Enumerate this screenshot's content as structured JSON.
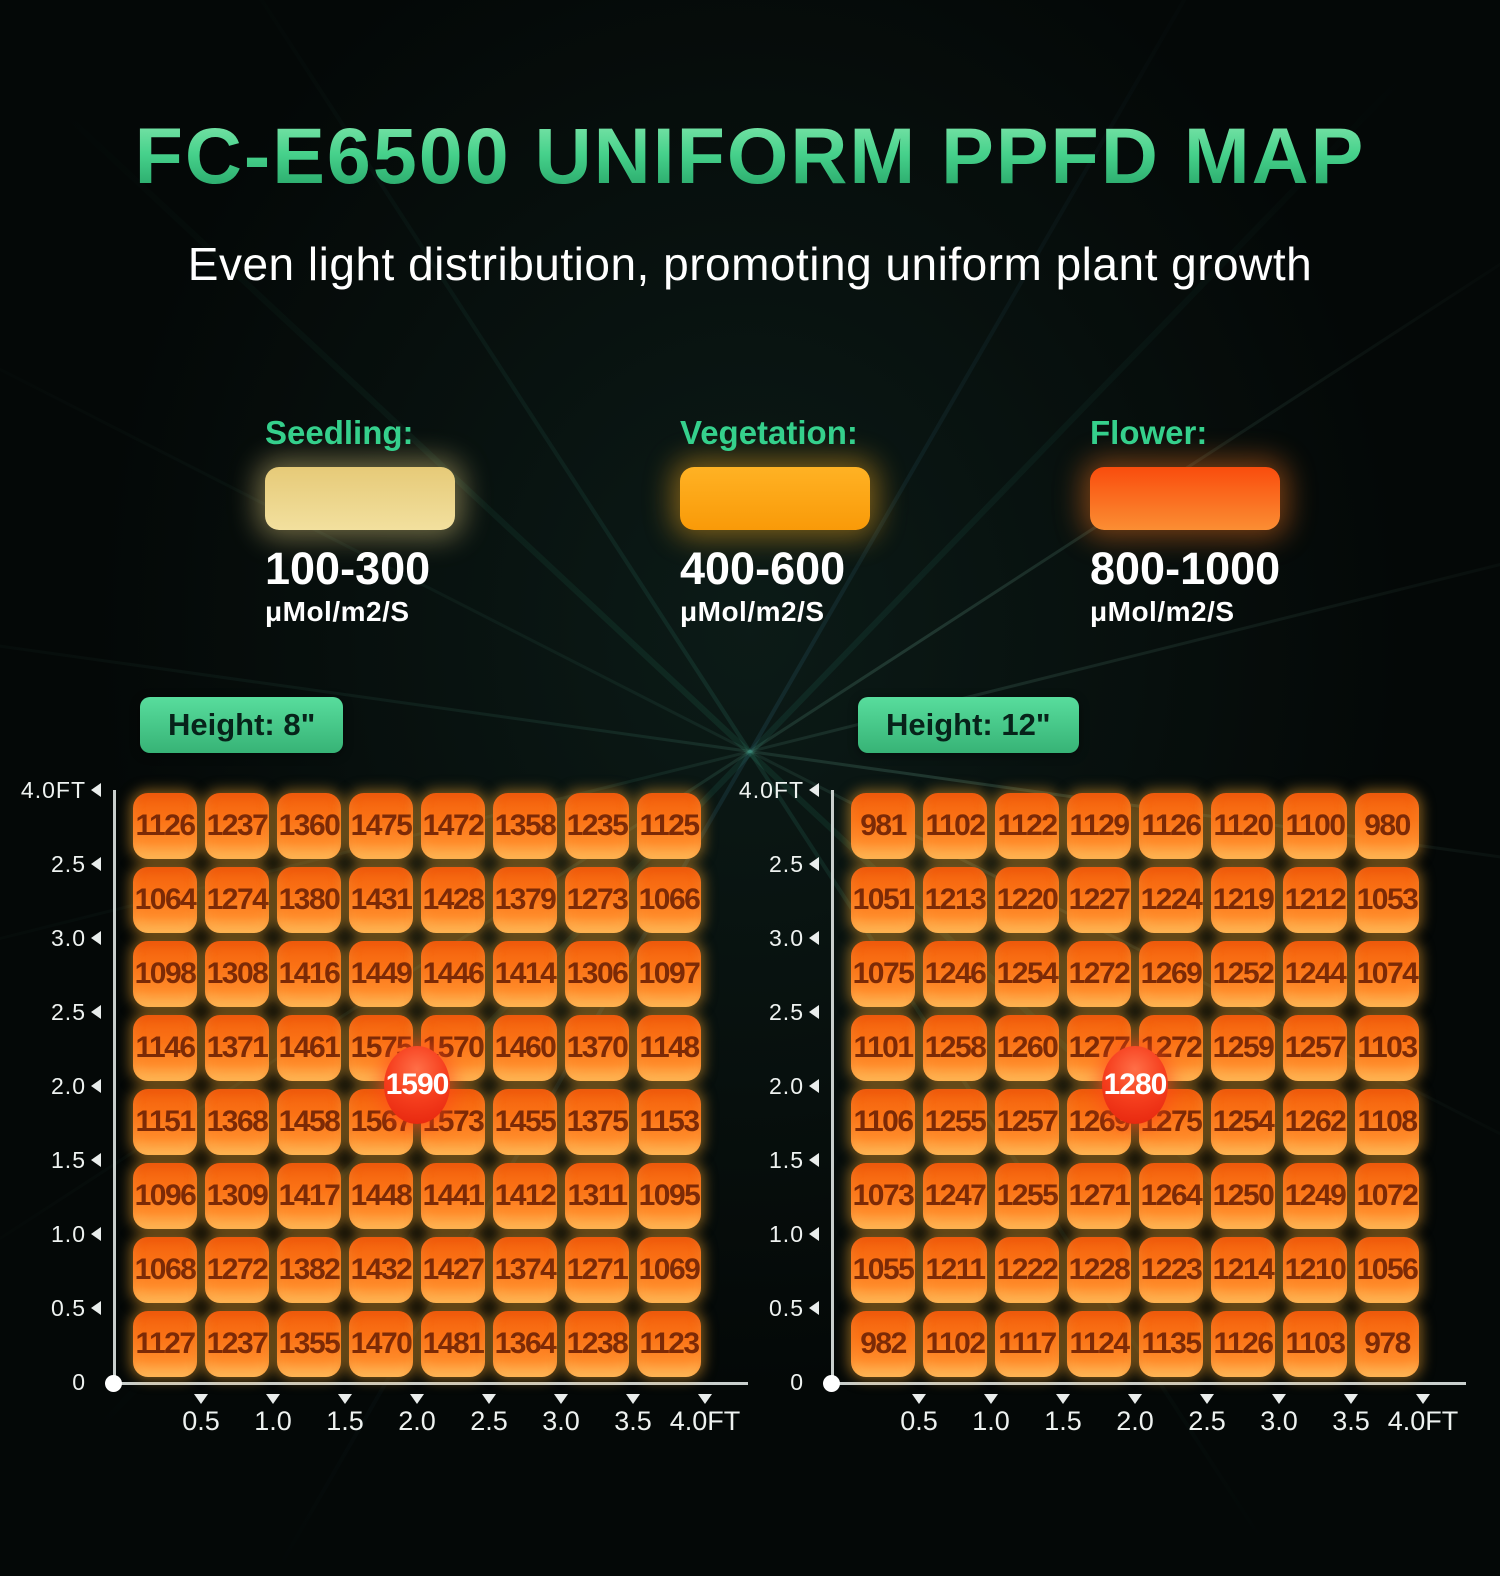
{
  "title": "FC-E6500 UNIFORM PPFD MAP",
  "subtitle": "Even light distribution, promoting uniform plant growth",
  "colors": {
    "accent_green": "#35d08c",
    "tile_orange": "#fb7215",
    "tile_text": "#7c2a06",
    "axis": "#c9cfcd",
    "badge_red": "#f63f1e"
  },
  "legend": [
    {
      "label": "Seedling:",
      "range": "100-300",
      "unit": "μMol/m2/S",
      "color_top": "#e6ca78",
      "color_bottom": "#f2e09e",
      "glow": "rgba(235,210,130,0.45)"
    },
    {
      "label": "Vegetation:",
      "range": "400-600",
      "unit": "μMol/m2/S",
      "color_top": "#ffb224",
      "color_bottom": "#f99a08",
      "glow": "rgba(255,175,30,0.45)"
    },
    {
      "label": "Flower:",
      "range": "800-1000",
      "unit": "μMol/m2/S",
      "color_top": "#f94c0d",
      "color_bottom": "#fb8e33",
      "glow": "rgba(252,120,30,0.45)"
    }
  ],
  "chart_data": [
    {
      "type": "heatmap",
      "title": "Height: 8\"",
      "center_value": 1590,
      "x_ticks": [
        "0.5",
        "1.0",
        "1.5",
        "2.0",
        "2.5",
        "3.0",
        "3.5",
        "4.0FT"
      ],
      "y_ticks": [
        "4.0FT",
        "2.5",
        "3.0",
        "2.5",
        "2.0",
        "1.5",
        "1.0",
        "0.5",
        "0"
      ],
      "values": [
        [
          1126,
          1237,
          1360,
          1475,
          1472,
          1358,
          1235,
          1125
        ],
        [
          1064,
          1274,
          1380,
          1431,
          1428,
          1379,
          1273,
          1066
        ],
        [
          1098,
          1308,
          1416,
          1449,
          1446,
          1414,
          1306,
          1097
        ],
        [
          1146,
          1371,
          1461,
          1575,
          1570,
          1460,
          1370,
          1148
        ],
        [
          1151,
          1368,
          1458,
          1567,
          1573,
          1455,
          1375,
          1153
        ],
        [
          1096,
          1309,
          1417,
          1448,
          1441,
          1412,
          1311,
          1095
        ],
        [
          1068,
          1272,
          1382,
          1432,
          1427,
          1374,
          1271,
          1069
        ],
        [
          1127,
          1237,
          1355,
          1470,
          1481,
          1364,
          1238,
          1123
        ]
      ]
    },
    {
      "type": "heatmap",
      "title": "Height: 12\"",
      "center_value": 1280,
      "x_ticks": [
        "0.5",
        "1.0",
        "1.5",
        "2.0",
        "2.5",
        "3.0",
        "3.5",
        "4.0FT"
      ],
      "y_ticks": [
        "4.0FT",
        "2.5",
        "3.0",
        "2.5",
        "2.0",
        "1.5",
        "1.0",
        "0.5",
        "0"
      ],
      "values": [
        [
          981,
          1102,
          1122,
          1129,
          1126,
          1120,
          1100,
          980
        ],
        [
          1051,
          1213,
          1220,
          1227,
          1224,
          1219,
          1212,
          1053
        ],
        [
          1075,
          1246,
          1254,
          1272,
          1269,
          1252,
          1244,
          1074
        ],
        [
          1101,
          1258,
          1260,
          1277,
          1272,
          1259,
          1257,
          1103
        ],
        [
          1106,
          1255,
          1257,
          1269,
          1275,
          1254,
          1262,
          1108
        ],
        [
          1073,
          1247,
          1255,
          1271,
          1264,
          1250,
          1249,
          1072
        ],
        [
          1055,
          1211,
          1222,
          1228,
          1223,
          1214,
          1210,
          1056
        ],
        [
          982,
          1102,
          1117,
          1124,
          1135,
          1126,
          1103,
          978
        ]
      ]
    }
  ]
}
